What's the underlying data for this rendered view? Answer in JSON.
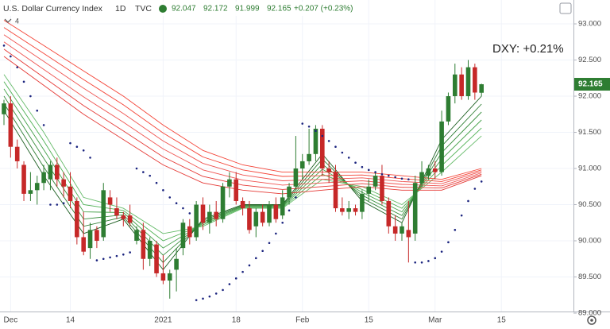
{
  "chart_data": {
    "type": "candlestick",
    "symbol": "U.S. Dollar Currency Index",
    "interval": "1D",
    "exchange": "TVC",
    "change": "+0.207 (+0.23%)",
    "indicator_count": "4",
    "annotation": "DXY: +0.21%",
    "categories": [
      null,
      "Dec",
      null,
      null,
      null,
      null,
      null,
      null,
      null,
      null,
      "14",
      null,
      null,
      null,
      null,
      null,
      null,
      null,
      null,
      null,
      null,
      null,
      null,
      null,
      "2021",
      null,
      null,
      null,
      null,
      null,
      null,
      null,
      null,
      null,
      null,
      "18",
      null,
      null,
      null,
      null,
      null,
      null,
      null,
      null,
      null,
      "Feb",
      null,
      null,
      null,
      null,
      null,
      null,
      null,
      null,
      null,
      "15",
      null,
      null,
      null,
      null,
      null,
      null,
      null,
      null,
      null,
      "Mar",
      null,
      null,
      null,
      null,
      null,
      null,
      null,
      null,
      null,
      "15"
    ],
    "candles": {
      "up_color": "#2e7d32",
      "down_color": "#c62828",
      "open": [
        91.75,
        91.9,
        91.3,
        91.05,
        90.65,
        90.7,
        90.8,
        90.85,
        91.05,
        90.85,
        90.75,
        90.55,
        90.05,
        89.9,
        90.15,
        90.05,
        90.6,
        90.45,
        90.35,
        90.35,
        90.0,
        90.15,
        89.75,
        89.95,
        89.55,
        89.45,
        89.6,
        89.9,
        90.2,
        90.05,
        90.5,
        90.25,
        90.4,
        90.3,
        90.75,
        90.85,
        90.55,
        90.45,
        90.2,
        90.4,
        90.25,
        90.5,
        90.35,
        90.6,
        90.75,
        91.0,
        91.1,
        91.2,
        91.55,
        91.0,
        90.95,
        90.45,
        90.4,
        90.45,
        90.4,
        90.65,
        90.75,
        90.9,
        90.55,
        90.2,
        90.1,
        90.15,
        90.1,
        90.8,
        90.9,
        91.0,
        90.95,
        91.65,
        92.0,
        92.3,
        92.0,
        92.4,
        92.047,
        null,
        null,
        null
      ],
      "high": [
        91.95,
        92.0,
        91.4,
        91.1,
        90.95,
        90.9,
        91.05,
        91.1,
        91.15,
        90.95,
        90.95,
        90.6,
        90.4,
        90.25,
        90.2,
        90.8,
        90.7,
        90.6,
        90.4,
        90.5,
        90.2,
        90.25,
        90.05,
        90.0,
        89.8,
        89.6,
        89.9,
        90.3,
        90.3,
        90.55,
        90.6,
        90.5,
        90.55,
        90.8,
        90.95,
        90.95,
        90.6,
        90.55,
        90.45,
        90.5,
        90.55,
        90.6,
        90.7,
        90.8,
        91.45,
        91.2,
        91.55,
        91.6,
        91.6,
        91.1,
        91.05,
        90.6,
        90.55,
        90.5,
        90.7,
        90.85,
        90.95,
        91.05,
        90.6,
        90.35,
        90.25,
        90.55,
        90.9,
        91.1,
        91.05,
        91.1,
        91.8,
        92.05,
        92.45,
        92.4,
        92.5,
        92.45,
        92.172,
        null,
        null,
        null
      ],
      "low": [
        91.6,
        91.15,
        91.0,
        90.55,
        90.55,
        90.5,
        90.7,
        90.7,
        90.75,
        90.6,
        90.45,
        89.95,
        89.8,
        89.75,
        89.9,
        90.0,
        90.4,
        90.3,
        90.2,
        90.2,
        89.95,
        89.6,
        89.65,
        89.5,
        89.4,
        89.2,
        89.3,
        89.8,
        89.95,
        90.0,
        90.15,
        90.1,
        90.2,
        90.25,
        90.6,
        90.5,
        90.35,
        90.1,
        90.05,
        90.2,
        90.2,
        90.25,
        90.3,
        90.5,
        90.7,
        90.85,
        91.05,
        91.1,
        90.9,
        90.8,
        90.4,
        90.35,
        90.3,
        90.35,
        90.3,
        90.55,
        90.7,
        90.5,
        90.1,
        90.0,
        90.0,
        89.7,
        90.0,
        90.75,
        90.85,
        90.85,
        90.9,
        91.6,
        91.9,
        91.95,
        91.95,
        91.95,
        91.999,
        null,
        null,
        null
      ],
      "close": [
        91.9,
        91.3,
        91.1,
        90.65,
        90.7,
        90.8,
        90.95,
        91.05,
        90.85,
        90.75,
        90.55,
        90.05,
        89.85,
        90.15,
        90.0,
        90.7,
        90.5,
        90.35,
        90.3,
        90.25,
        90.15,
        89.75,
        90.0,
        89.55,
        89.45,
        89.55,
        89.75,
        90.25,
        90.05,
        90.5,
        90.25,
        90.4,
        90.3,
        90.75,
        90.85,
        90.55,
        90.45,
        90.15,
        90.4,
        90.25,
        90.5,
        90.3,
        90.6,
        90.75,
        91.0,
        91.1,
        91.2,
        91.55,
        91.0,
        90.95,
        90.45,
        90.4,
        90.45,
        90.4,
        90.65,
        90.75,
        90.9,
        90.55,
        90.2,
        90.1,
        90.2,
        90.05,
        90.8,
        90.95,
        91.0,
        90.95,
        91.65,
        92.0,
        92.3,
        92.0,
        92.4,
        92.05,
        92.165,
        null,
        null,
        null
      ]
    },
    "sar": {
      "color": "#1a237e",
      "values": [
        92.7,
        92.55,
        92.4,
        92.2,
        92.0,
        91.8,
        91.6,
        90.5,
        90.5,
        90.52,
        91.35,
        91.3,
        91.25,
        91.15,
        89.73,
        89.75,
        89.77,
        89.79,
        89.81,
        89.84,
        91.0,
        90.95,
        90.9,
        90.8,
        90.7,
        90.6,
        90.52,
        90.45,
        90.38,
        89.18,
        89.2,
        89.23,
        89.27,
        89.32,
        89.4,
        89.48,
        89.57,
        89.66,
        89.76,
        89.86,
        89.97,
        90.1,
        90.25,
        90.42,
        90.6,
        91.62,
        91.58,
        91.52,
        91.45,
        91.38,
        91.3,
        91.22,
        91.15,
        91.08,
        91.02,
        90.98,
        90.95,
        90.92,
        90.9,
        90.88,
        90.86,
        90.85,
        89.7,
        89.7,
        89.72,
        89.76,
        89.85,
        89.98,
        90.15,
        90.35,
        90.55,
        90.72,
        90.82,
        null,
        null,
        null
      ]
    },
    "ribbon_x": [
      0,
      6,
      12,
      18,
      24,
      30,
      36,
      42,
      48,
      54,
      60,
      66,
      72
    ],
    "ribbons": [
      {
        "color": "#1b5e20",
        "values": [
          91.8,
          90.9,
          90.1,
          90.3,
          89.6,
          90.3,
          90.5,
          90.5,
          91.2,
          90.55,
          90.25,
          91.4,
          92.0
        ]
      },
      {
        "color": "#2e7d32",
        "values": [
          91.9,
          91.02,
          90.2,
          90.33,
          89.7,
          90.28,
          90.49,
          90.49,
          91.13,
          90.59,
          90.3,
          91.31,
          91.89
        ]
      },
      {
        "color": "#388e3c",
        "values": [
          92.0,
          91.14,
          90.3,
          90.36,
          89.8,
          90.26,
          90.48,
          90.48,
          91.06,
          90.63,
          90.35,
          91.22,
          91.78
        ]
      },
      {
        "color": "#43a047",
        "values": [
          92.1,
          91.26,
          90.4,
          90.39,
          89.9,
          90.24,
          90.47,
          90.47,
          90.99,
          90.67,
          90.4,
          91.13,
          91.67
        ]
      },
      {
        "color": "#4caf50",
        "values": [
          92.2,
          91.38,
          90.5,
          90.42,
          90.0,
          90.22,
          90.46,
          90.46,
          90.92,
          90.71,
          90.45,
          91.04,
          91.56
        ]
      },
      {
        "color": "#66bb6a",
        "values": [
          92.3,
          91.5,
          90.6,
          90.45,
          90.1,
          90.2,
          90.45,
          90.45,
          90.85,
          90.75,
          90.5,
          90.95,
          91.45
        ]
      },
      {
        "color": "#e53935",
        "values": [
          92.55,
          92.15,
          91.75,
          91.4,
          91.05,
          90.8,
          90.7,
          90.65,
          90.7,
          90.75,
          90.7,
          90.7,
          90.9
        ]
      },
      {
        "color": "#e53935",
        "values": [
          92.65,
          92.26,
          91.87,
          91.52,
          91.16,
          90.89,
          90.77,
          90.71,
          90.75,
          90.79,
          90.74,
          90.73,
          90.92
        ]
      },
      {
        "color": "#ef5350",
        "values": [
          92.75,
          92.37,
          91.99,
          91.64,
          91.27,
          90.98,
          90.84,
          90.77,
          90.8,
          90.83,
          90.78,
          90.76,
          90.94
        ]
      },
      {
        "color": "#ef5350",
        "values": [
          92.85,
          92.48,
          92.11,
          91.76,
          91.38,
          91.07,
          90.91,
          90.83,
          90.85,
          90.87,
          90.82,
          90.79,
          90.96
        ]
      },
      {
        "color": "#f44336",
        "values": [
          92.95,
          92.59,
          92.23,
          91.88,
          91.49,
          91.16,
          90.98,
          90.89,
          90.9,
          90.91,
          90.86,
          90.82,
          90.98
        ]
      },
      {
        "color": "#f44336",
        "values": [
          93.05,
          92.7,
          92.35,
          92.0,
          91.6,
          91.25,
          91.05,
          90.95,
          90.95,
          90.95,
          90.9,
          90.85,
          91.0
        ]
      }
    ],
    "ylim": [
      89.022,
      93.33
    ],
    "yticks": [
      {
        "value": 89,
        "label": "89.000"
      },
      {
        "value": 89.5,
        "label": "89.500"
      },
      {
        "value": 90,
        "label": "90.000"
      },
      {
        "value": 90.5,
        "label": "90.500"
      },
      {
        "value": 91,
        "label": "91.000"
      },
      {
        "value": 91.5,
        "label": "91.500"
      },
      {
        "value": 92,
        "label": "92.000"
      },
      {
        "value": 92.5,
        "label": "92.500"
      },
      {
        "value": 93,
        "label": "93.000"
      }
    ],
    "grid": true
  }
}
